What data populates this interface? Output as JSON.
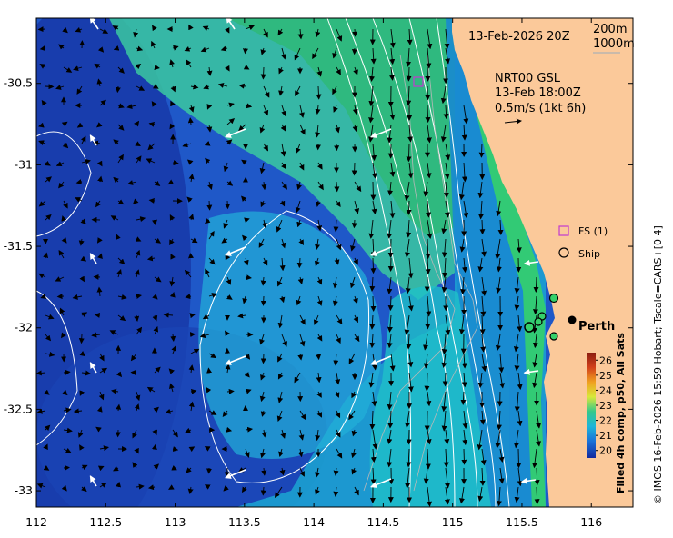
{
  "date_label": "13-Feb-2026 20Z",
  "isobath": {
    "line1": "200m",
    "line2": "1000m"
  },
  "current_info": {
    "line1": "NRT00 GSL",
    "line2": "13-Feb 18:00Z",
    "line3": "0.5m/s (1kt 6h)"
  },
  "legend": {
    "fs_label": "FS (1)",
    "ship_label": "Ship"
  },
  "place": {
    "name": "Perth",
    "lon": 115.86,
    "lat": -31.95
  },
  "axes": {
    "lon_range": [
      112,
      116.3
    ],
    "lat_range": [
      -33.1,
      -30.1
    ],
    "x_ticks": [
      "112",
      "112.5",
      "113",
      "113.5",
      "114",
      "114.5",
      "115",
      "115.5",
      "116"
    ],
    "y_ticks": [
      "-30.5",
      "-31",
      "-31.5",
      "-32",
      "-32.5",
      "-33"
    ]
  },
  "colorbar": {
    "ticks": [
      "26",
      "25",
      "24",
      "23",
      "22",
      "21",
      "20"
    ],
    "range": [
      19.5,
      26.5
    ],
    "title": "Filled 4h comp, p50, All Sats",
    "colors": [
      "#8b1d10",
      "#e8631e",
      "#f5c518",
      "#c8e83a",
      "#35c88a",
      "#1fb5d8",
      "#1a72d8",
      "#142a9e"
    ]
  },
  "credit": "© IMOS 16-Feb-2026 15:59 Hobart; Tscale=CARS+[0 4]",
  "colors": {
    "land": "#fbc99a",
    "sea_deep": "#1a3fb5",
    "sea_warm": "#2cbf8a"
  }
}
